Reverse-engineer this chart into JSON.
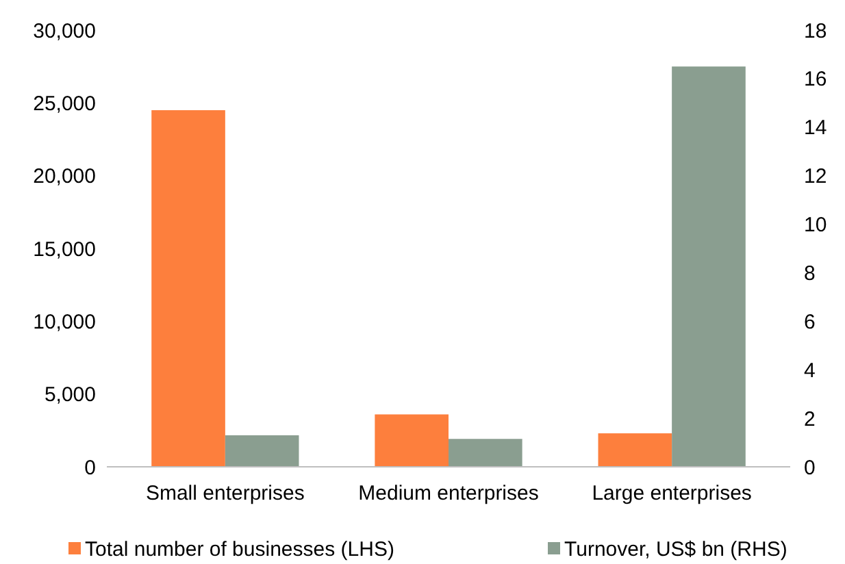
{
  "chart_data": {
    "type": "bar",
    "categories": [
      "Small enterprises",
      "Medium enterprises",
      "Large enterprises"
    ],
    "series": [
      {
        "name": "Total number of businesses (LHS)",
        "color": "#fd7f3d",
        "values": [
          24500,
          3600,
          2300
        ]
      },
      {
        "name": "Turnover, US$ bn (RHS)",
        "color": "#8a9e90",
        "values": [
          1.3,
          1.15,
          16.5
        ],
        "axis": "y2"
      }
    ],
    "ylim": [
      0,
      30000
    ],
    "yticks": [
      {
        "value": 0,
        "label": "0"
      },
      {
        "value": 5000,
        "label": "5,000"
      },
      {
        "value": 10000,
        "label": "10,000"
      },
      {
        "value": 15000,
        "label": "15,000"
      },
      {
        "value": 20000,
        "label": "20,000"
      },
      {
        "value": 25000,
        "label": "25,000"
      },
      {
        "value": 30000,
        "label": "30,000"
      }
    ],
    "y2lim": [
      0,
      18
    ],
    "y2ticks": [
      0,
      2,
      4,
      6,
      8,
      10,
      12,
      14,
      16,
      18
    ],
    "grid": false,
    "legend": "bottom"
  }
}
